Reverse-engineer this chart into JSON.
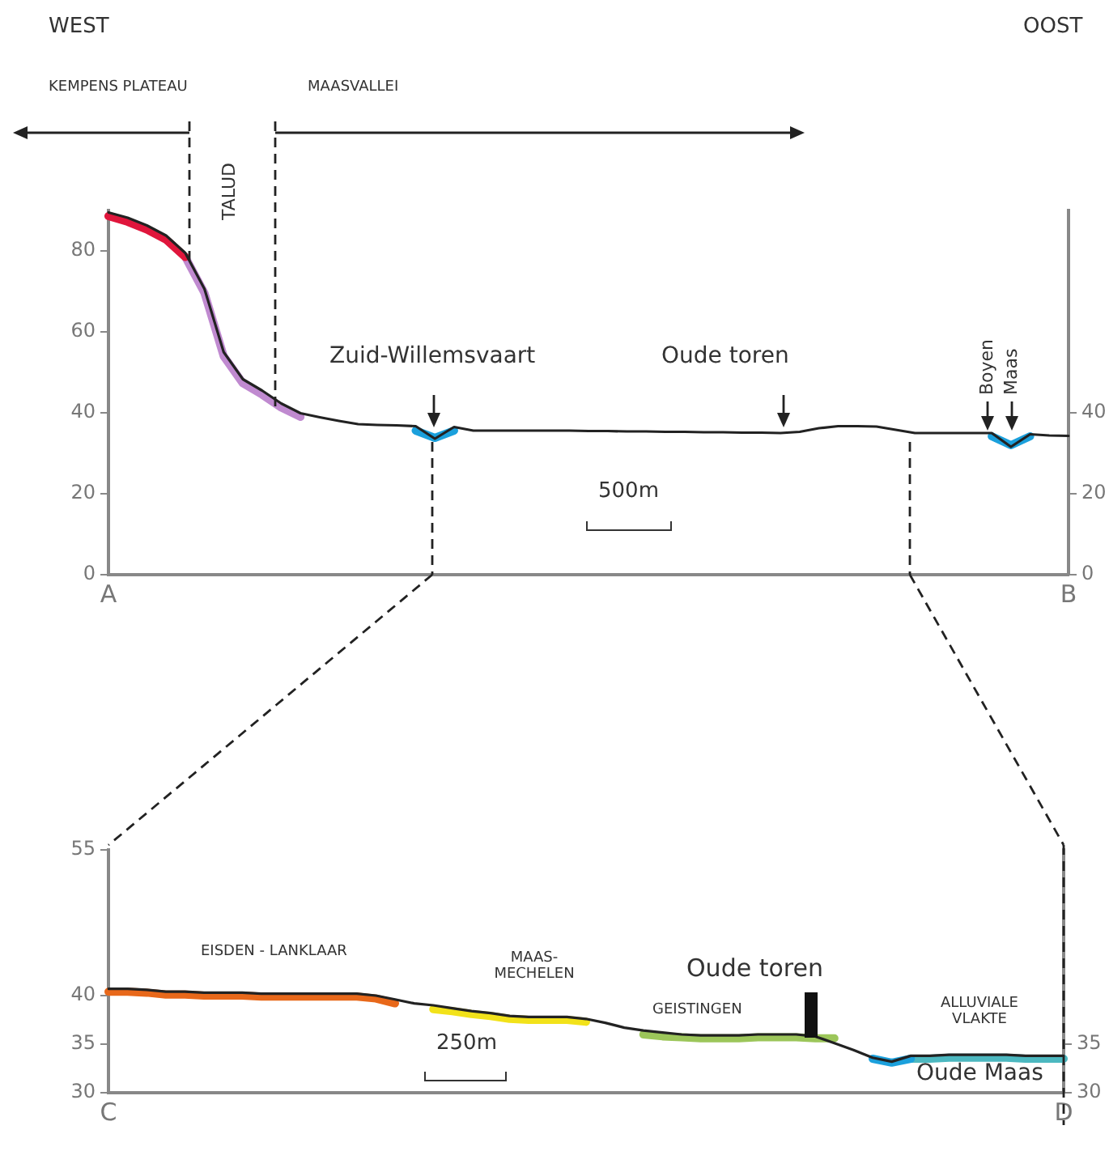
{
  "chart_data": [
    {
      "type": "line",
      "marker": "none",
      "legend": false,
      "grid": false,
      "categories": [
        "A",
        null,
        null,
        null,
        null,
        null,
        null,
        null,
        null,
        null,
        null,
        null,
        null,
        null,
        null,
        null,
        null,
        null,
        null,
        null,
        null,
        null,
        null,
        null,
        null,
        null,
        null,
        null,
        null,
        null,
        null,
        null,
        null,
        null,
        null,
        null,
        null,
        null,
        null,
        null,
        null,
        null,
        null,
        null,
        null,
        null,
        null,
        null,
        null,
        null,
        "B"
      ],
      "ylim": [
        0,
        90
      ],
      "yticks": [
        0,
        20,
        40,
        60,
        80
      ],
      "y2lim": [
        0,
        90
      ],
      "y2ticks": [
        0,
        20,
        40
      ],
      "series": [
        {
          "color": "#222222",
          "values": [
            89.5,
            88.2,
            86.3,
            83.8,
            79.5,
            70.6,
            55.0,
            48.3,
            45.5,
            42.3,
            39.9,
            38.9,
            38.0,
            37.2,
            37.0,
            36.9,
            36.7,
            33.6,
            36.5,
            35.6,
            35.6,
            35.6,
            35.6,
            35.6,
            35.6,
            35.5,
            35.5,
            35.4,
            35.4,
            35.3,
            35.3,
            35.2,
            35.2,
            35.1,
            35.1,
            35.0,
            35.3,
            36.2,
            36.7,
            36.7,
            36.6,
            35.8,
            35.0,
            35.0,
            35.0,
            35.0,
            35.0,
            31.6,
            34.7,
            34.4,
            34.3
          ]
        },
        {
          "color": "#e0163c",
          "values": [
            88.6,
            87.2,
            85.3,
            82.8,
            78.5,
            null,
            null,
            null,
            null,
            null,
            null,
            null,
            null,
            null,
            null,
            null,
            null,
            null,
            null,
            null,
            null,
            null,
            null,
            null,
            null,
            null,
            null,
            null,
            null,
            null,
            null,
            null,
            null,
            null,
            null,
            null,
            null,
            null,
            null,
            null,
            null,
            null,
            null,
            null,
            null,
            null,
            null,
            null,
            null,
            null,
            null
          ]
        },
        {
          "color": "#c08ad0",
          "values": [
            null,
            null,
            null,
            null,
            78.5,
            69.6,
            54.0,
            47.3,
            44.5,
            41.3,
            39.0,
            null,
            null,
            null,
            null,
            null,
            null,
            null,
            null,
            null,
            null,
            null,
            null,
            null,
            null,
            null,
            null,
            null,
            null,
            null,
            null,
            null,
            null,
            null,
            null,
            null,
            null,
            null,
            null,
            null,
            null,
            null,
            null,
            null,
            null,
            null,
            null,
            null,
            null,
            null,
            null
          ]
        },
        {
          "color": "#1ba0dc",
          "values": [
            null,
            null,
            null,
            null,
            null,
            null,
            null,
            null,
            null,
            null,
            null,
            null,
            null,
            null,
            null,
            null,
            35.6,
            33.8,
            35.6,
            null,
            null,
            null,
            null,
            null,
            null,
            null,
            null,
            null,
            null,
            null,
            null,
            null,
            null,
            null,
            null,
            null,
            null,
            null,
            null,
            null,
            null,
            null,
            null,
            null,
            null,
            null,
            34.2,
            32.0,
            34.2,
            null,
            null
          ]
        }
      ],
      "annotations": [
        "WEST",
        "OOST",
        "KEMPENS PLATEAU",
        "MAASVALLEI",
        "TALUD",
        "Zuid-Willemsvaart",
        "Oude toren",
        "Boyen",
        "Maas",
        "500m"
      ]
    },
    {
      "type": "line",
      "marker": "none",
      "legend": false,
      "grid": false,
      "categories": [
        "C",
        null,
        null,
        null,
        null,
        null,
        null,
        null,
        null,
        null,
        null,
        null,
        null,
        null,
        null,
        null,
        null,
        null,
        null,
        null,
        null,
        null,
        null,
        null,
        null,
        null,
        null,
        null,
        null,
        null,
        null,
        null,
        null,
        null,
        null,
        null,
        null,
        null,
        null,
        null,
        null,
        null,
        null,
        null,
        null,
        null,
        null,
        null,
        null,
        null,
        "D"
      ],
      "ylim": [
        30,
        55
      ],
      "yticks": [
        30,
        35,
        40,
        55
      ],
      "y2lim": [
        30,
        55
      ],
      "y2ticks": [
        30,
        35
      ],
      "series": [
        {
          "color": "#222222",
          "values": [
            40.7,
            40.7,
            40.6,
            40.4,
            40.4,
            40.3,
            40.3,
            40.3,
            40.2,
            40.2,
            40.2,
            40.2,
            40.2,
            40.2,
            40.0,
            39.6,
            39.2,
            39.0,
            38.7,
            38.4,
            38.2,
            37.9,
            37.8,
            37.8,
            37.8,
            37.6,
            37.2,
            36.7,
            36.4,
            36.2,
            36.0,
            35.9,
            35.9,
            35.9,
            36.0,
            36.0,
            36.0,
            35.8,
            35.1,
            34.4,
            33.6,
            33.2,
            33.8,
            33.8,
            33.9,
            33.9,
            33.9,
            33.9,
            33.8,
            33.8,
            33.8
          ]
        },
        {
          "color": "#e8681a",
          "values": [
            40.4,
            40.4,
            40.3,
            40.1,
            40.1,
            40.0,
            40.0,
            40.0,
            39.9,
            39.9,
            39.9,
            39.9,
            39.9,
            39.9,
            39.7,
            39.2,
            null,
            null,
            null,
            null,
            null,
            null,
            null,
            null,
            null,
            null,
            null,
            null,
            null,
            null,
            null,
            null,
            null,
            null,
            null,
            null,
            null,
            null,
            null,
            null,
            null,
            null,
            null,
            null,
            null,
            null,
            null,
            null,
            null,
            null,
            null
          ]
        },
        {
          "color": "#f2e21a",
          "values": [
            null,
            null,
            null,
            null,
            null,
            null,
            null,
            null,
            null,
            null,
            null,
            null,
            null,
            null,
            null,
            null,
            null,
            38.6,
            38.4,
            38.1,
            37.9,
            37.6,
            37.5,
            37.5,
            37.5,
            37.3,
            null,
            null,
            null,
            null,
            null,
            null,
            null,
            null,
            null,
            null,
            null,
            null,
            null,
            null,
            null,
            null,
            null,
            null,
            null,
            null,
            null,
            null,
            null,
            null,
            null
          ]
        },
        {
          "color": "#9cc65a",
          "values": [
            null,
            null,
            null,
            null,
            null,
            null,
            null,
            null,
            null,
            null,
            null,
            null,
            null,
            null,
            null,
            null,
            null,
            null,
            null,
            null,
            null,
            null,
            null,
            null,
            null,
            null,
            null,
            null,
            36.0,
            35.8,
            35.7,
            35.6,
            35.6,
            35.6,
            35.7,
            35.7,
            35.7,
            35.6,
            35.6,
            null,
            null,
            null,
            null,
            null,
            null,
            null,
            null,
            null,
            null,
            null,
            null
          ]
        },
        {
          "color": "#1ba0dc",
          "values": [
            null,
            null,
            null,
            null,
            null,
            null,
            null,
            null,
            null,
            null,
            null,
            null,
            null,
            null,
            null,
            null,
            null,
            null,
            null,
            null,
            null,
            null,
            null,
            null,
            null,
            null,
            null,
            null,
            null,
            null,
            null,
            null,
            null,
            null,
            null,
            null,
            null,
            null,
            null,
            null,
            33.5,
            33.1,
            33.5,
            null,
            null,
            null,
            null,
            null,
            null,
            null,
            null
          ]
        },
        {
          "color": "#4cb8c0",
          "values": [
            null,
            null,
            null,
            null,
            null,
            null,
            null,
            null,
            null,
            null,
            null,
            null,
            null,
            null,
            null,
            null,
            null,
            null,
            null,
            null,
            null,
            null,
            null,
            null,
            null,
            null,
            null,
            null,
            null,
            null,
            null,
            null,
            null,
            null,
            null,
            null,
            null,
            null,
            null,
            null,
            null,
            null,
            33.5,
            33.5,
            33.6,
            33.6,
            33.6,
            33.6,
            33.5,
            33.5,
            33.5
          ]
        }
      ],
      "annotations": [
        "EISDEN - LANKLAAR",
        "MAAS-MECHELEN",
        "GEISTINGEN",
        "ALLUVIALE VLAKTE",
        "Oude toren",
        "Oude Maas",
        "250m"
      ]
    }
  ]
}
